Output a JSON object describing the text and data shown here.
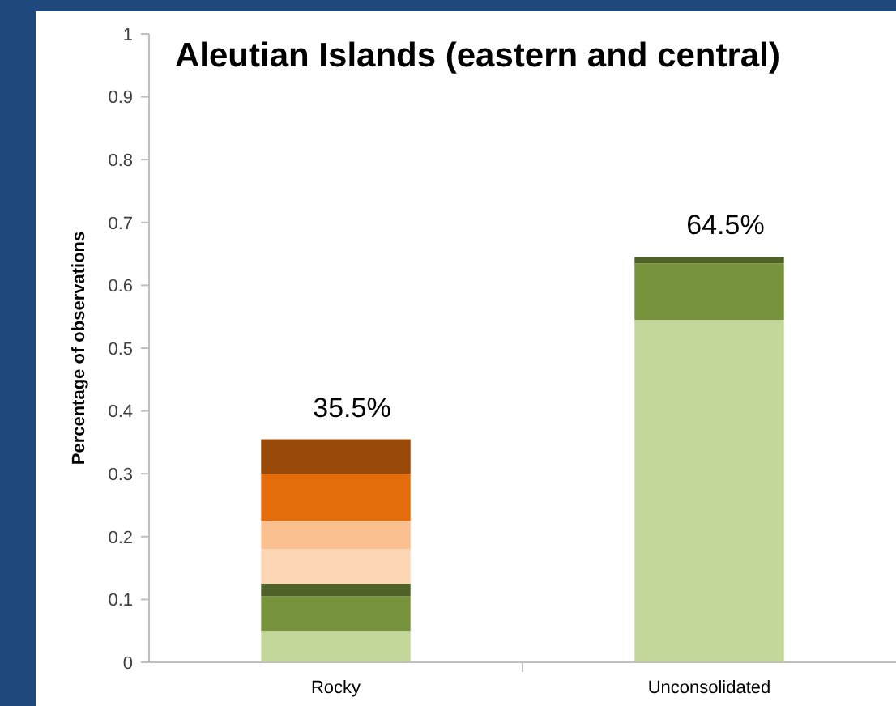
{
  "chart_data": {
    "type": "bar",
    "stacked": true,
    "title": "Aleutian Islands (eastern and central)",
    "ylabel": "Percentage of observations",
    "categories": [
      "Rocky",
      "Unconsolidated"
    ],
    "series": [
      {
        "color": "#c4d79b",
        "values": [
          0.05,
          0.545
        ]
      },
      {
        "color": "#77933c",
        "values": [
          0.055,
          0.09
        ]
      },
      {
        "color": "#4f6228",
        "values": [
          0.02,
          0.01
        ]
      },
      {
        "color": "#fcd5b5",
        "values": [
          0.055,
          0
        ]
      },
      {
        "color": "#fac090",
        "values": [
          0.045,
          0
        ]
      },
      {
        "color": "#e46c0a",
        "values": [
          0.075,
          0
        ]
      },
      {
        "color": "#984807",
        "values": [
          0.055,
          0
        ]
      }
    ],
    "totals": [
      "35.5%",
      "64.5%"
    ],
    "ylim": [
      0,
      1
    ],
    "yticks": [
      0,
      0.1,
      0.2,
      0.3,
      0.4,
      0.5,
      0.6,
      0.7,
      0.8,
      0.9,
      1
    ]
  }
}
